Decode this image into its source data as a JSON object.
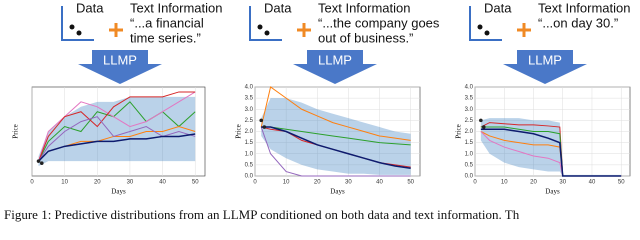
{
  "panels": [
    {
      "data_label": "Data",
      "text_label": "Text Information",
      "quote": [
        "“...a financial",
        "time series.”"
      ],
      "model": "LLMP",
      "chart": {
        "type": "line",
        "xlabel": "Days",
        "ylabel": "Price",
        "grid": true,
        "xlim": [
          0,
          53
        ],
        "ylim": [
          0,
          18
        ],
        "xticks": [
          0,
          10,
          20,
          30,
          40,
          50
        ],
        "x": [
          2,
          5,
          10,
          15,
          20,
          25,
          30,
          35,
          40,
          45,
          50
        ],
        "band": {
          "color": "#3a7fc0",
          "lower": [
            2,
            3,
            3,
            3,
            3,
            3,
            3,
            3,
            3,
            3,
            3
          ],
          "upper": [
            4,
            9,
            12,
            14,
            15,
            15,
            16,
            16,
            16,
            16,
            16
          ]
        },
        "observed": {
          "x": [
            2,
            3
          ],
          "y": [
            3,
            2.6
          ],
          "color": "#222"
        },
        "series": [
          {
            "color": "#2ca02c",
            "values": [
              3,
              7,
              10,
              9,
              13,
              12,
              15,
              11,
              13,
              10,
              13
            ]
          },
          {
            "color": "#e377c2",
            "values": [
              3,
              9,
              12,
              15,
              14,
              12,
              10,
              11,
              13,
              15,
              17
            ]
          },
          {
            "color": "#d62728",
            "values": [
              3,
              8,
              12,
              13,
              10,
              14,
              16,
              16,
              16,
              17,
              17
            ]
          },
          {
            "color": "#ff7f0e",
            "values": [
              3,
              5,
              6,
              7,
              7,
              8,
              8,
              9,
              9,
              10,
              9
            ]
          },
          {
            "color": "#9467bd",
            "values": [
              3,
              6,
              9,
              11,
              12,
              8,
              9,
              10,
              8,
              9,
              8
            ]
          },
          {
            "color": "#0d1b6e",
            "values": [
              3,
              5,
              6,
              6.5,
              7,
              7,
              7.5,
              7.5,
              8,
              8,
              8.5
            ]
          }
        ]
      }
    },
    {
      "data_label": "Data",
      "text_label": "Text Information",
      "quote": [
        "“...the company goes",
        "out of business.”"
      ],
      "model": "LLMP",
      "chart": {
        "type": "line",
        "xlabel": "Days",
        "ylabel": "Price",
        "grid": true,
        "xlim": [
          0,
          53
        ],
        "ylim": [
          0,
          4
        ],
        "xticks": [
          0,
          10,
          20,
          30,
          40,
          50
        ],
        "yticks": [
          {
            "value": 0,
            "label": "0.0"
          },
          {
            "value": 0.5,
            "label": "0.5"
          },
          {
            "value": 1,
            "label": "1.0"
          },
          {
            "value": 1.5,
            "label": "1.5"
          },
          {
            "value": 2,
            "label": "2.0"
          },
          {
            "value": 2.5,
            "label": "2.5"
          },
          {
            "value": 3,
            "label": "3.0"
          },
          {
            "value": 3.5,
            "label": "3.5"
          },
          {
            "value": 4,
            "label": "4.0"
          }
        ],
        "x": [
          2,
          5,
          10,
          15,
          20,
          25,
          30,
          35,
          40,
          45,
          50
        ],
        "band": {
          "color": "#3a7fc0",
          "lower": [
            1.8,
            1.2,
            0.8,
            0.5,
            0.3,
            0.2,
            0.1,
            0.1,
            0.05,
            0.05,
            0.05
          ],
          "upper": [
            2.6,
            3.5,
            3.5,
            3.3,
            3,
            2.8,
            2.6,
            2.4,
            2.2,
            2,
            1.9
          ]
        },
        "observed": {
          "x": [
            2,
            3
          ],
          "y": [
            2.5,
            2.2
          ],
          "color": "#222"
        },
        "series": [
          {
            "color": "#ff7f0e",
            "values": [
              2.2,
              4,
              3.5,
              3,
              2.7,
              2.4,
              2.2,
              2,
              1.8,
              1.7,
              1.6
            ]
          },
          {
            "color": "#2ca02c",
            "values": [
              2.2,
              2.2,
              2.1,
              2,
              1.9,
              1.8,
              1.7,
              1.6,
              1.5,
              1.45,
              1.4
            ]
          },
          {
            "color": "#d62728",
            "values": [
              2.2,
              2.1,
              2,
              1.6,
              1.4,
              1.2,
              1,
              0.8,
              0.6,
              0.5,
              0.4
            ]
          },
          {
            "color": "#9467bd",
            "values": [
              2.2,
              1,
              0.2,
              0,
              0,
              0,
              0,
              0,
              0,
              0,
              0
            ]
          },
          {
            "color": "#0d1b6e",
            "values": [
              2.2,
              2.2,
              2,
              1.7,
              1.4,
              1.2,
              1,
              0.8,
              0.6,
              0.45,
              0.35
            ]
          }
        ]
      }
    },
    {
      "data_label": "Data",
      "text_label": "Text Information",
      "quote": [
        "“...on day 30.”"
      ],
      "model": "LLMP",
      "chart": {
        "type": "line",
        "xlabel": "Days",
        "ylabel": "Price",
        "grid": true,
        "xlim": [
          0,
          53
        ],
        "ylim": [
          0,
          4
        ],
        "xticks": [
          0,
          10,
          20,
          30,
          40,
          50
        ],
        "yticks": [
          {
            "value": 0,
            "label": "0.0"
          },
          {
            "value": 0.5,
            "label": "0.5"
          },
          {
            "value": 1,
            "label": "1.0"
          },
          {
            "value": 1.5,
            "label": "1.5"
          },
          {
            "value": 2,
            "label": "2.0"
          },
          {
            "value": 2.5,
            "label": "2.5"
          },
          {
            "value": 3,
            "label": "3.0"
          },
          {
            "value": 3.5,
            "label": "3.5"
          },
          {
            "value": 4,
            "label": "4.0"
          }
        ],
        "x": [
          2,
          5,
          10,
          15,
          20,
          25,
          29,
          30,
          35,
          40,
          45,
          50
        ],
        "band": {
          "color": "#3a7fc0",
          "lower": [
            1.6,
            1,
            0.6,
            0.4,
            0.3,
            0.2,
            0.2,
            0,
            0,
            0,
            0,
            0
          ],
          "upper": [
            2.5,
            2.6,
            2.6,
            2.6,
            2.5,
            2.5,
            2.4,
            0.05,
            0.05,
            0.05,
            0.05,
            0.05
          ]
        },
        "observed": {
          "x": [
            2,
            3
          ],
          "y": [
            2.5,
            2.2
          ],
          "color": "#222"
        },
        "series": [
          {
            "color": "#d62728",
            "values": [
              2.2,
              2.4,
              2.35,
              2.3,
              2.3,
              2.25,
              2.2,
              0,
              0,
              0,
              0,
              0
            ]
          },
          {
            "color": "#2ca02c",
            "values": [
              2.2,
              2.2,
              2.2,
              2.1,
              2,
              2,
              1.9,
              0,
              0,
              0,
              0,
              0
            ]
          },
          {
            "color": "#ff7f0e",
            "values": [
              2,
              1.8,
              1.6,
              1.5,
              1.4,
              1.4,
              1.3,
              0,
              0,
              0,
              0,
              0
            ]
          },
          {
            "color": "#e377c2",
            "values": [
              2,
              1.6,
              1.3,
              1.1,
              0.9,
              0.8,
              0.6,
              0,
              0,
              0,
              0,
              0
            ]
          },
          {
            "color": "#0d1b6e",
            "values": [
              2.1,
              2.1,
              2.1,
              2,
              1.9,
              1.7,
              1.5,
              0,
              0,
              0,
              0,
              0
            ]
          }
        ]
      }
    }
  ],
  "caption": "Figure 1: Predictive distributions from an LLMP conditioned on both data and text information. Th"
}
